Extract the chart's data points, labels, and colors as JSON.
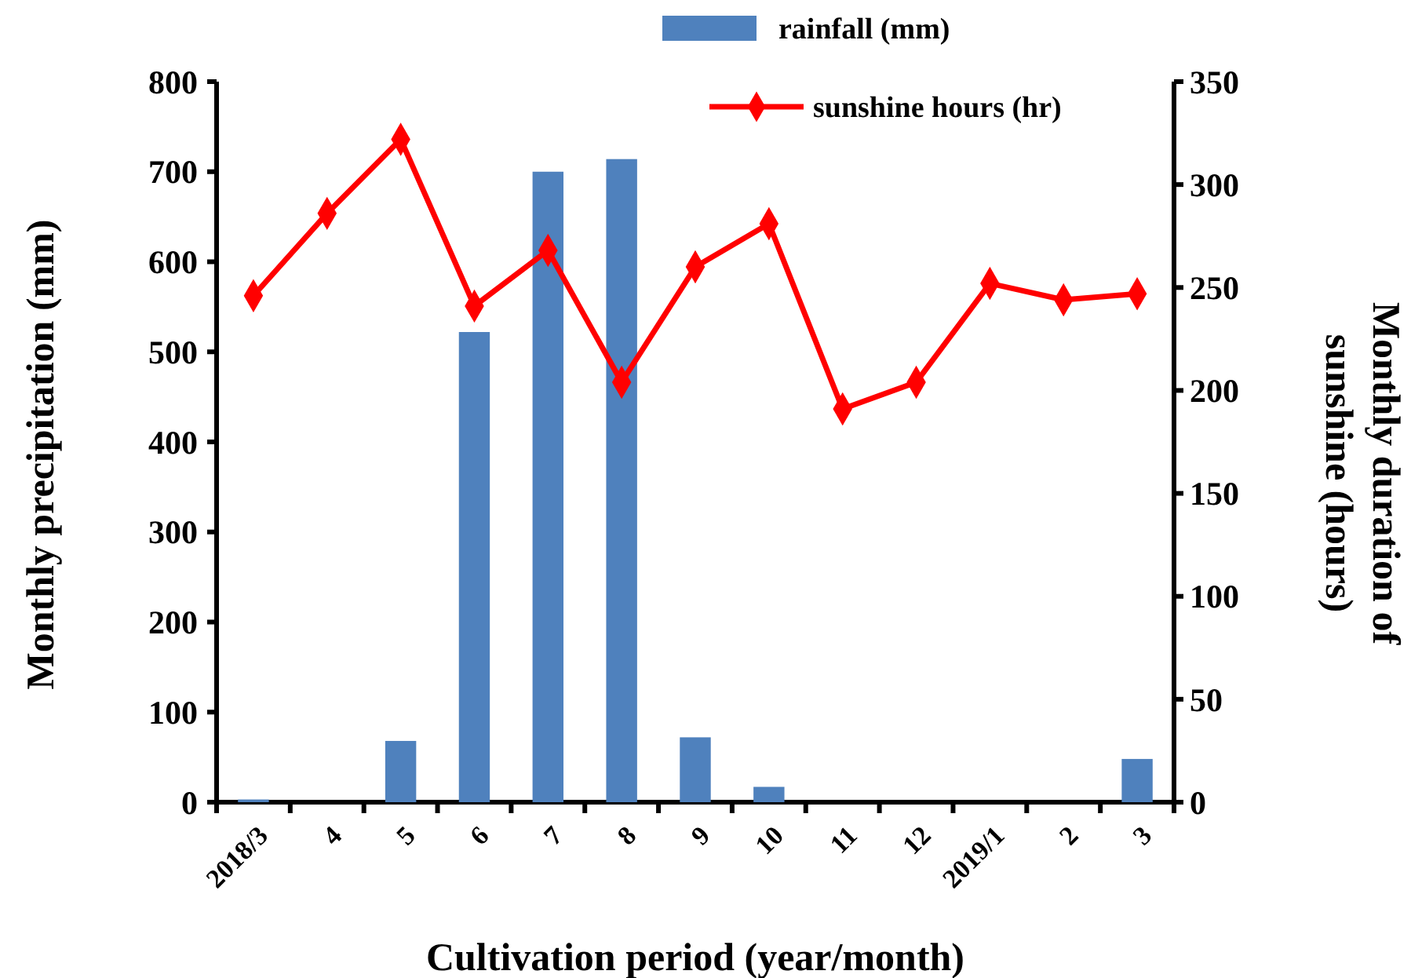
{
  "chart_data": {
    "type": "bar",
    "xlabel": "Cultivation period (year/month)",
    "ylabel": "Monthly precipitation (mm)",
    "y2label": "Monthly duration of sunshine (hours)",
    "categories": [
      "2018/3",
      "4",
      "5",
      "6",
      "7",
      "8",
      "9",
      "10",
      "11",
      "12",
      "2019/1",
      "2",
      "3"
    ],
    "series": [
      {
        "name": "rainfall (mm)",
        "color": "#4f81bd",
        "values": [
          3,
          0,
          68,
          522,
          700,
          714,
          72,
          17,
          0,
          0,
          0,
          0,
          48
        ]
      },
      {
        "name": "sunshine hours (hr)",
        "type": "line",
        "axis": "y2",
        "color": "#ff0000",
        "marker": "diamond",
        "values": [
          246,
          286,
          322,
          241,
          268,
          204,
          260,
          281,
          191,
          204,
          252,
          244,
          247
        ]
      }
    ],
    "ylim": [
      0,
      800
    ],
    "yticks": [
      0,
      100,
      200,
      300,
      400,
      500,
      600,
      700,
      800
    ],
    "y2lim": [
      0,
      350
    ],
    "y2ticks": [
      0,
      50,
      100,
      150,
      200,
      250,
      300,
      350
    ],
    "grid": false,
    "legend": "top right"
  }
}
